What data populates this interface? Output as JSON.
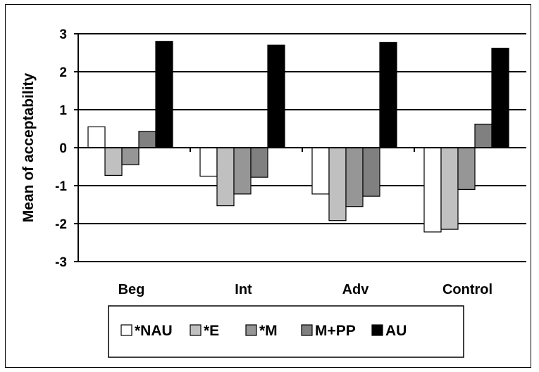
{
  "chart_data": {
    "type": "bar",
    "title": "",
    "xlabel": "",
    "ylabel": "Mean of acceptability",
    "ylim": [
      -3,
      3
    ],
    "yticks": [
      "3",
      "2",
      "1",
      "0",
      "-1",
      "-2",
      "-3"
    ],
    "categories": [
      "Beg",
      "Int",
      "Adv",
      "Control"
    ],
    "series": [
      {
        "name": "*NAU",
        "color": "#ffffff",
        "values": [
          0.55,
          -0.75,
          -1.22,
          -2.22
        ]
      },
      {
        "name": "*E",
        "color": "#c0c0c0",
        "values": [
          -0.73,
          -1.53,
          -1.92,
          -2.15
        ]
      },
      {
        "name": "*M",
        "color": "#969696",
        "values": [
          -0.45,
          -1.22,
          -1.55,
          -1.1
        ]
      },
      {
        "name": "M+PP",
        "color": "#808080",
        "values": [
          0.43,
          -0.78,
          -1.28,
          0.62
        ]
      },
      {
        "name": "AU",
        "color": "#000000",
        "values": [
          2.8,
          2.7,
          2.77,
          2.62
        ]
      }
    ],
    "grid": true,
    "legend_position": "bottom"
  }
}
